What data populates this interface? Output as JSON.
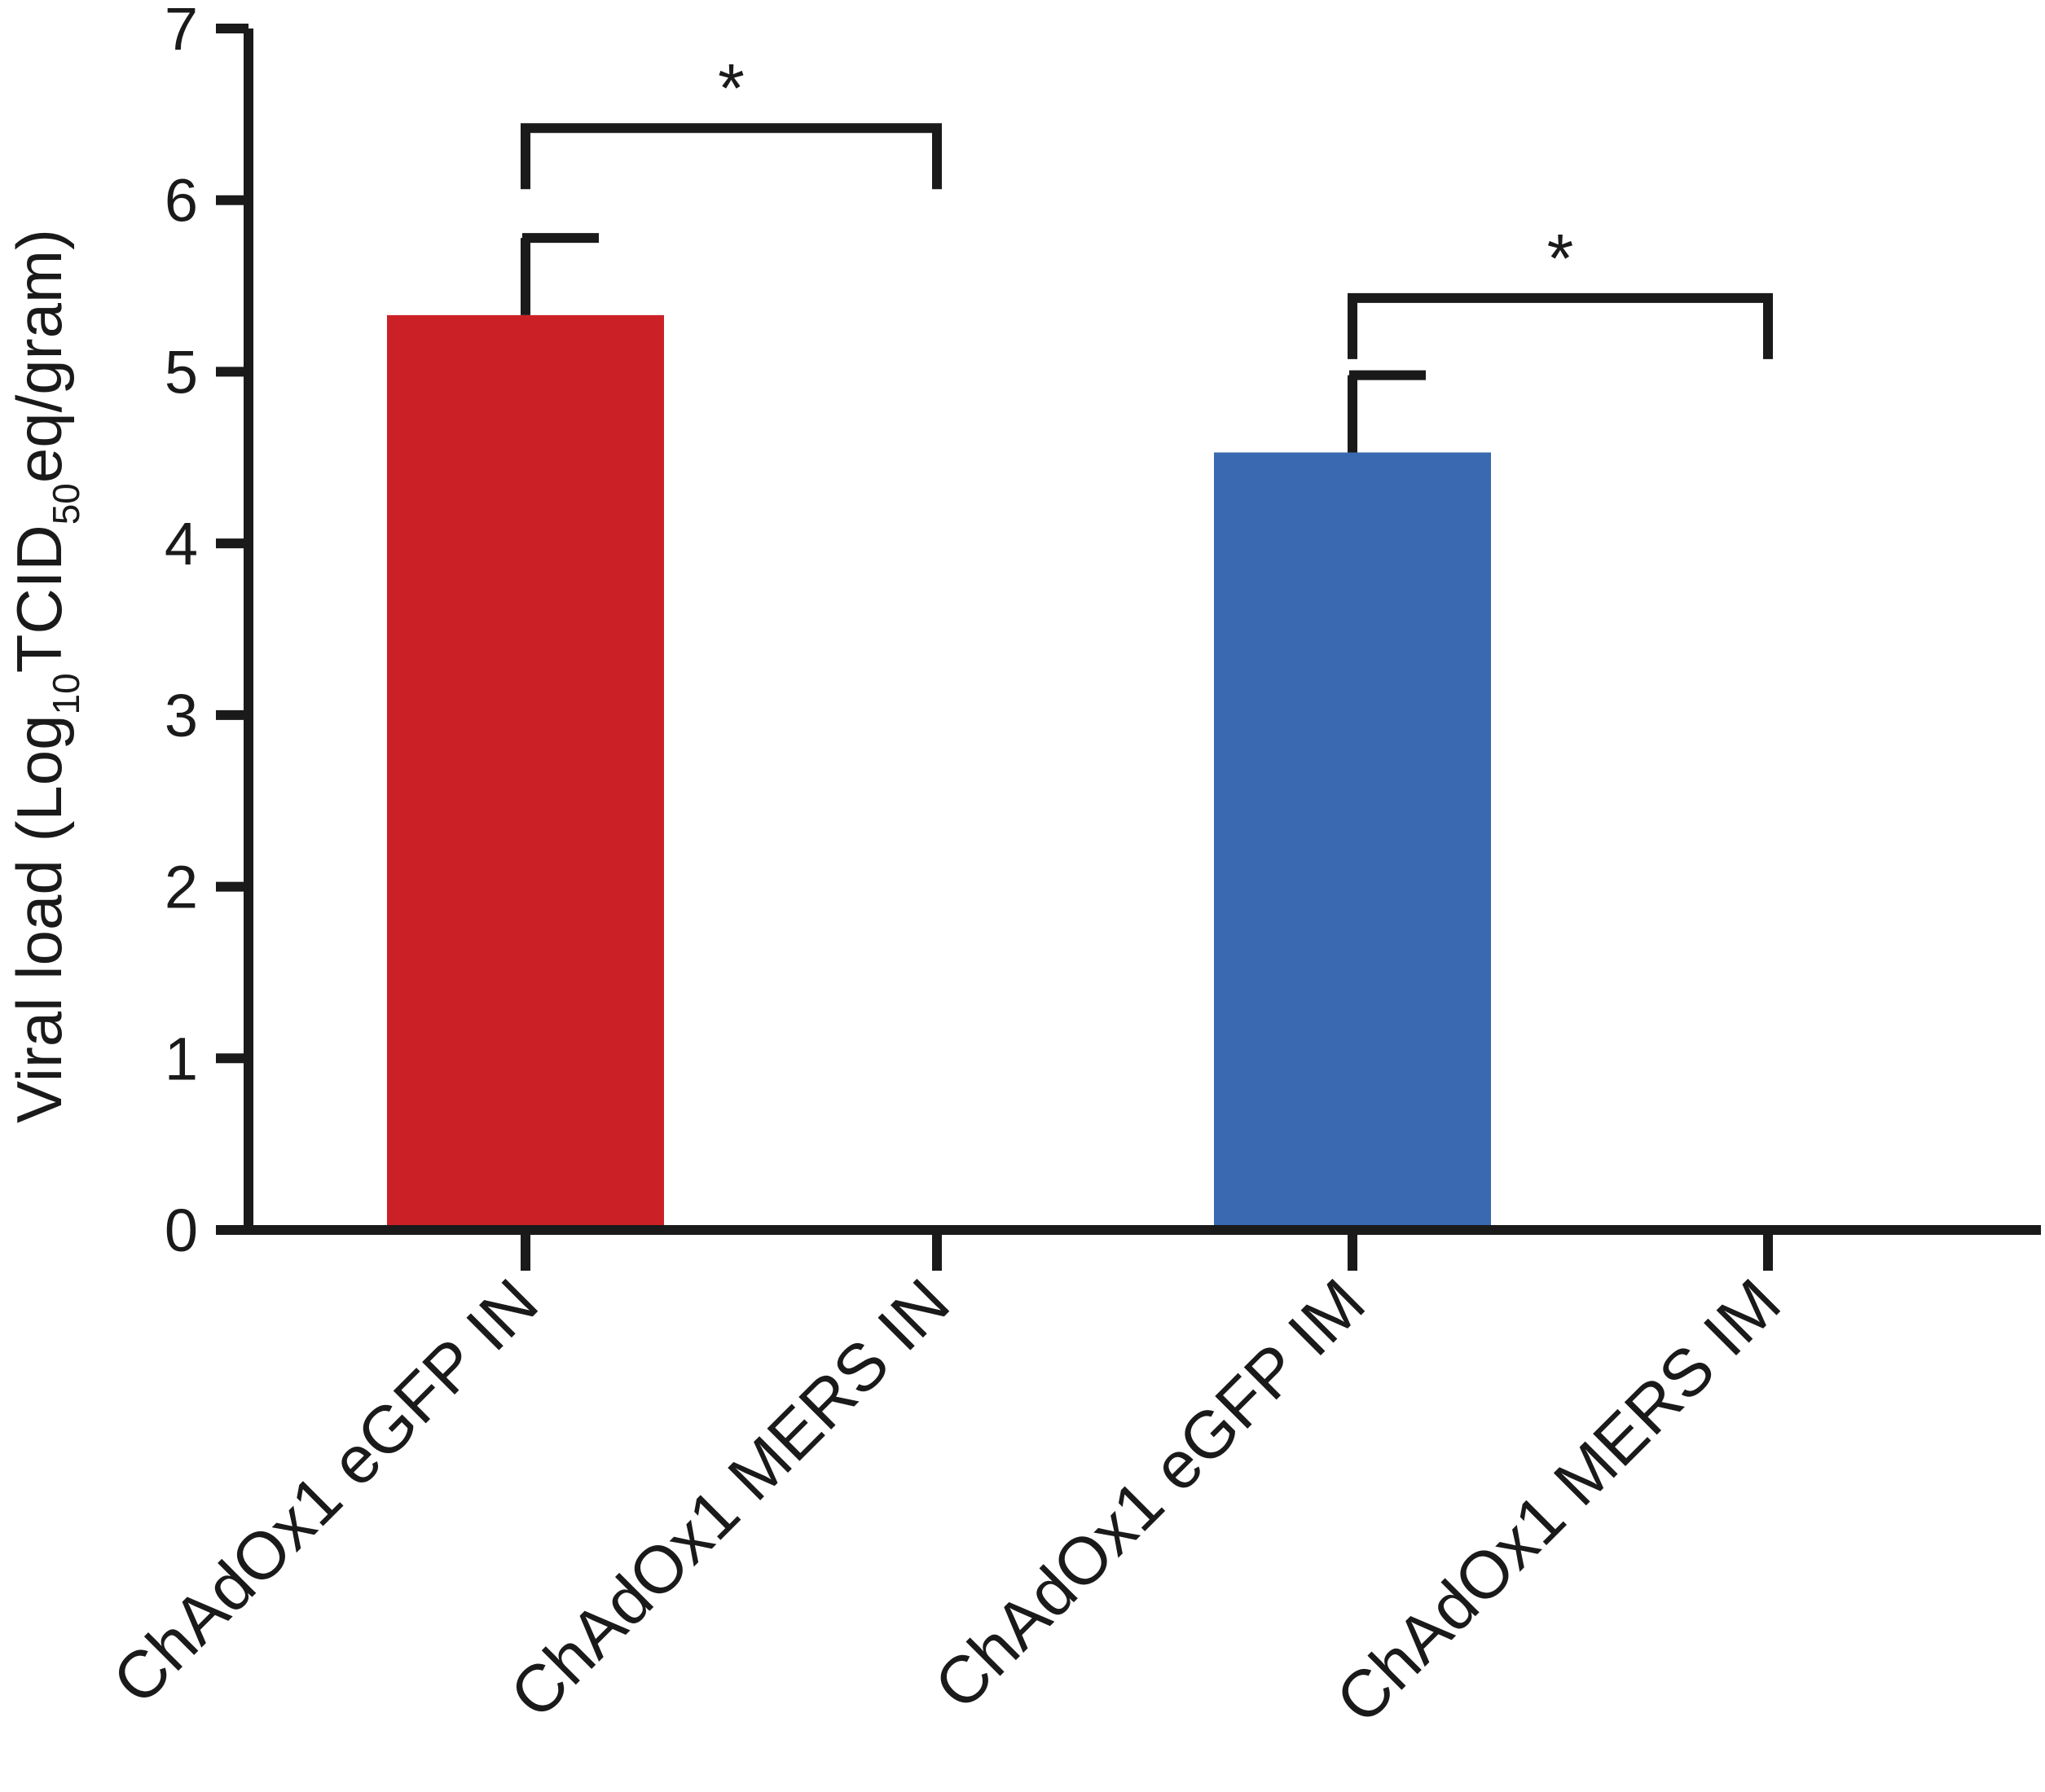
{
  "chart_data": {
    "type": "bar",
    "categories": [
      "ChAdOx1 eGFP IN",
      "ChAdOx1 MERS IN",
      "ChAdOx1 eGFP IM",
      "ChAdOx1 MERS IM"
    ],
    "values": [
      5.33,
      0,
      4.53,
      0
    ],
    "errors": [
      0.45,
      0,
      0.45,
      0
    ],
    "colors": [
      "#cc2027",
      "#ffffff",
      "#3a69b2",
      "#ffffff"
    ],
    "ylabel": {
      "prefix": "Viral load (Log",
      "sub1": "10",
      "mid": "TCID",
      "sub2": "50",
      "suffix": "eq/gram)"
    },
    "ylim": [
      0,
      7
    ],
    "yticks": [
      0,
      1,
      2,
      3,
      4,
      5,
      6,
      7
    ],
    "grid": false,
    "significance": [
      {
        "from": 0,
        "to": 1,
        "bracket_y": 6.42,
        "label": "*"
      },
      {
        "from": 2,
        "to": 3,
        "bracket_y": 5.43,
        "label": "*"
      }
    ]
  }
}
